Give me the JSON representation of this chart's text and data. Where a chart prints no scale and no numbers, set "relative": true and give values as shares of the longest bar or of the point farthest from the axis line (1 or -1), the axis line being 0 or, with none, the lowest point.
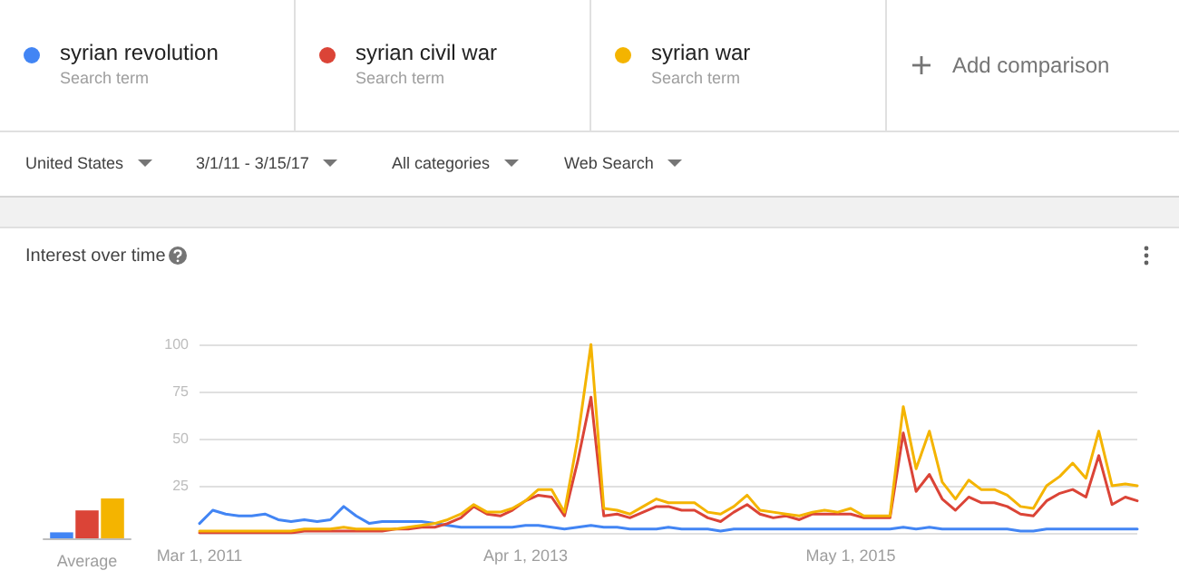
{
  "chart_data": [
    {
      "type": "bar",
      "relative": true,
      "categories": [
        "Average"
      ],
      "series": [
        {
          "color": "#4285f4",
          "values": [
            0.15
          ]
        },
        {
          "color": "#db4437",
          "values": [
            0.7
          ]
        },
        {
          "color": "#f4b400",
          "values": [
            1
          ]
        }
      ]
    },
    {
      "type": "line",
      "title": "Interest over time",
      "legend": "top",
      "grid": "y",
      "marker": "none",
      "line_style": "solid",
      "annotations": [
        "Search term",
        "Search term",
        "Search term",
        "Add comparison",
        "United States",
        "3/1/11 - 3/15/17",
        "All categories",
        "Web Search"
      ],
      "x": [
        "2011-03",
        "2011-04",
        "2011-05",
        "2011-06",
        "2011-07",
        "2011-08",
        "2011-09",
        "2011-10",
        "2011-11",
        "2011-12",
        "2012-01",
        "2012-02",
        "2012-03",
        "2012-04",
        "2012-05",
        "2012-06",
        "2012-07",
        "2012-08",
        "2012-09",
        "2012-10",
        "2012-11",
        "2012-12",
        "2013-01",
        "2013-02",
        "2013-03",
        "2013-04",
        "2013-05",
        "2013-06",
        "2013-07",
        "2013-08",
        "2013-09",
        "2013-10",
        "2013-11",
        "2013-12",
        "2014-01",
        "2014-02",
        "2014-03",
        "2014-04",
        "2014-05",
        "2014-06",
        "2014-07",
        "2014-08",
        "2014-09",
        "2014-10",
        "2014-11",
        "2014-12",
        "2015-01",
        "2015-02",
        "2015-03",
        "2015-04",
        "2015-05",
        "2015-06",
        "2015-07",
        "2015-08",
        "2015-09",
        "2015-10",
        "2015-11",
        "2015-12",
        "2016-01",
        "2016-02",
        "2016-03",
        "2016-04",
        "2016-05",
        "2016-06",
        "2016-07",
        "2016-08",
        "2016-09",
        "2016-10",
        "2016-11",
        "2016-12",
        "2017-01",
        "2017-02",
        "2017-03"
      ],
      "xlim": [
        "2011-03",
        "2017-03"
      ],
      "xticks": [
        {
          "value": "2011-03",
          "label": "Mar 1, 2011"
        },
        {
          "value": "2013-04",
          "label": "Apr 1, 2013"
        },
        {
          "value": "2015-05",
          "label": "May 1, 2015"
        }
      ],
      "ylim": [
        0,
        100
      ],
      "yticks": [
        {
          "value": 0,
          "label": null
        },
        25,
        50,
        75,
        100
      ],
      "series": [
        {
          "name": "syrian revolution",
          "color": "#4285f4",
          "values": [
            5,
            12,
            10,
            9,
            9,
            10,
            7,
            6,
            7,
            6,
            7,
            14,
            9,
            5,
            6,
            6,
            6,
            6,
            5,
            4,
            3,
            3,
            3,
            3,
            3,
            4,
            4,
            3,
            2,
            3,
            4,
            3,
            3,
            2,
            2,
            2,
            3,
            2,
            2,
            2,
            1,
            2,
            2,
            2,
            2,
            2,
            2,
            2,
            2,
            2,
            2,
            2,
            2,
            2,
            3,
            2,
            3,
            2,
            2,
            2,
            2,
            2,
            2,
            1,
            1,
            2,
            2,
            2,
            2,
            2,
            2,
            2,
            2
          ]
        },
        {
          "name": "syrian civil war",
          "color": "#db4437",
          "values": [
            0,
            0,
            0,
            0,
            0,
            0,
            0,
            0,
            1,
            1,
            1,
            1,
            1,
            1,
            1,
            2,
            2,
            3,
            3,
            5,
            8,
            14,
            10,
            9,
            12,
            17,
            20,
            19,
            9,
            38,
            72,
            9,
            10,
            8,
            11,
            14,
            14,
            12,
            12,
            8,
            6,
            11,
            15,
            10,
            8,
            9,
            7,
            10,
            10,
            10,
            10,
            8,
            8,
            8,
            53,
            22,
            31,
            18,
            12,
            19,
            16,
            16,
            14,
            10,
            9,
            17,
            21,
            23,
            19,
            41,
            15,
            19,
            17
          ]
        },
        {
          "name": "syrian war",
          "color": "#f4b400",
          "values": [
            1,
            1,
            1,
            1,
            1,
            1,
            1,
            1,
            2,
            2,
            2,
            3,
            2,
            2,
            2,
            2,
            3,
            4,
            5,
            7,
            10,
            15,
            11,
            11,
            13,
            17,
            23,
            23,
            11,
            50,
            100,
            13,
            12,
            10,
            14,
            18,
            16,
            16,
            16,
            11,
            10,
            14,
            20,
            12,
            11,
            10,
            9,
            11,
            12,
            11,
            13,
            9,
            9,
            9,
            67,
            34,
            54,
            27,
            18,
            28,
            23,
            23,
            20,
            14,
            13,
            25,
            30,
            37,
            29,
            54,
            25,
            26,
            25
          ]
        }
      ]
    }
  ]
}
